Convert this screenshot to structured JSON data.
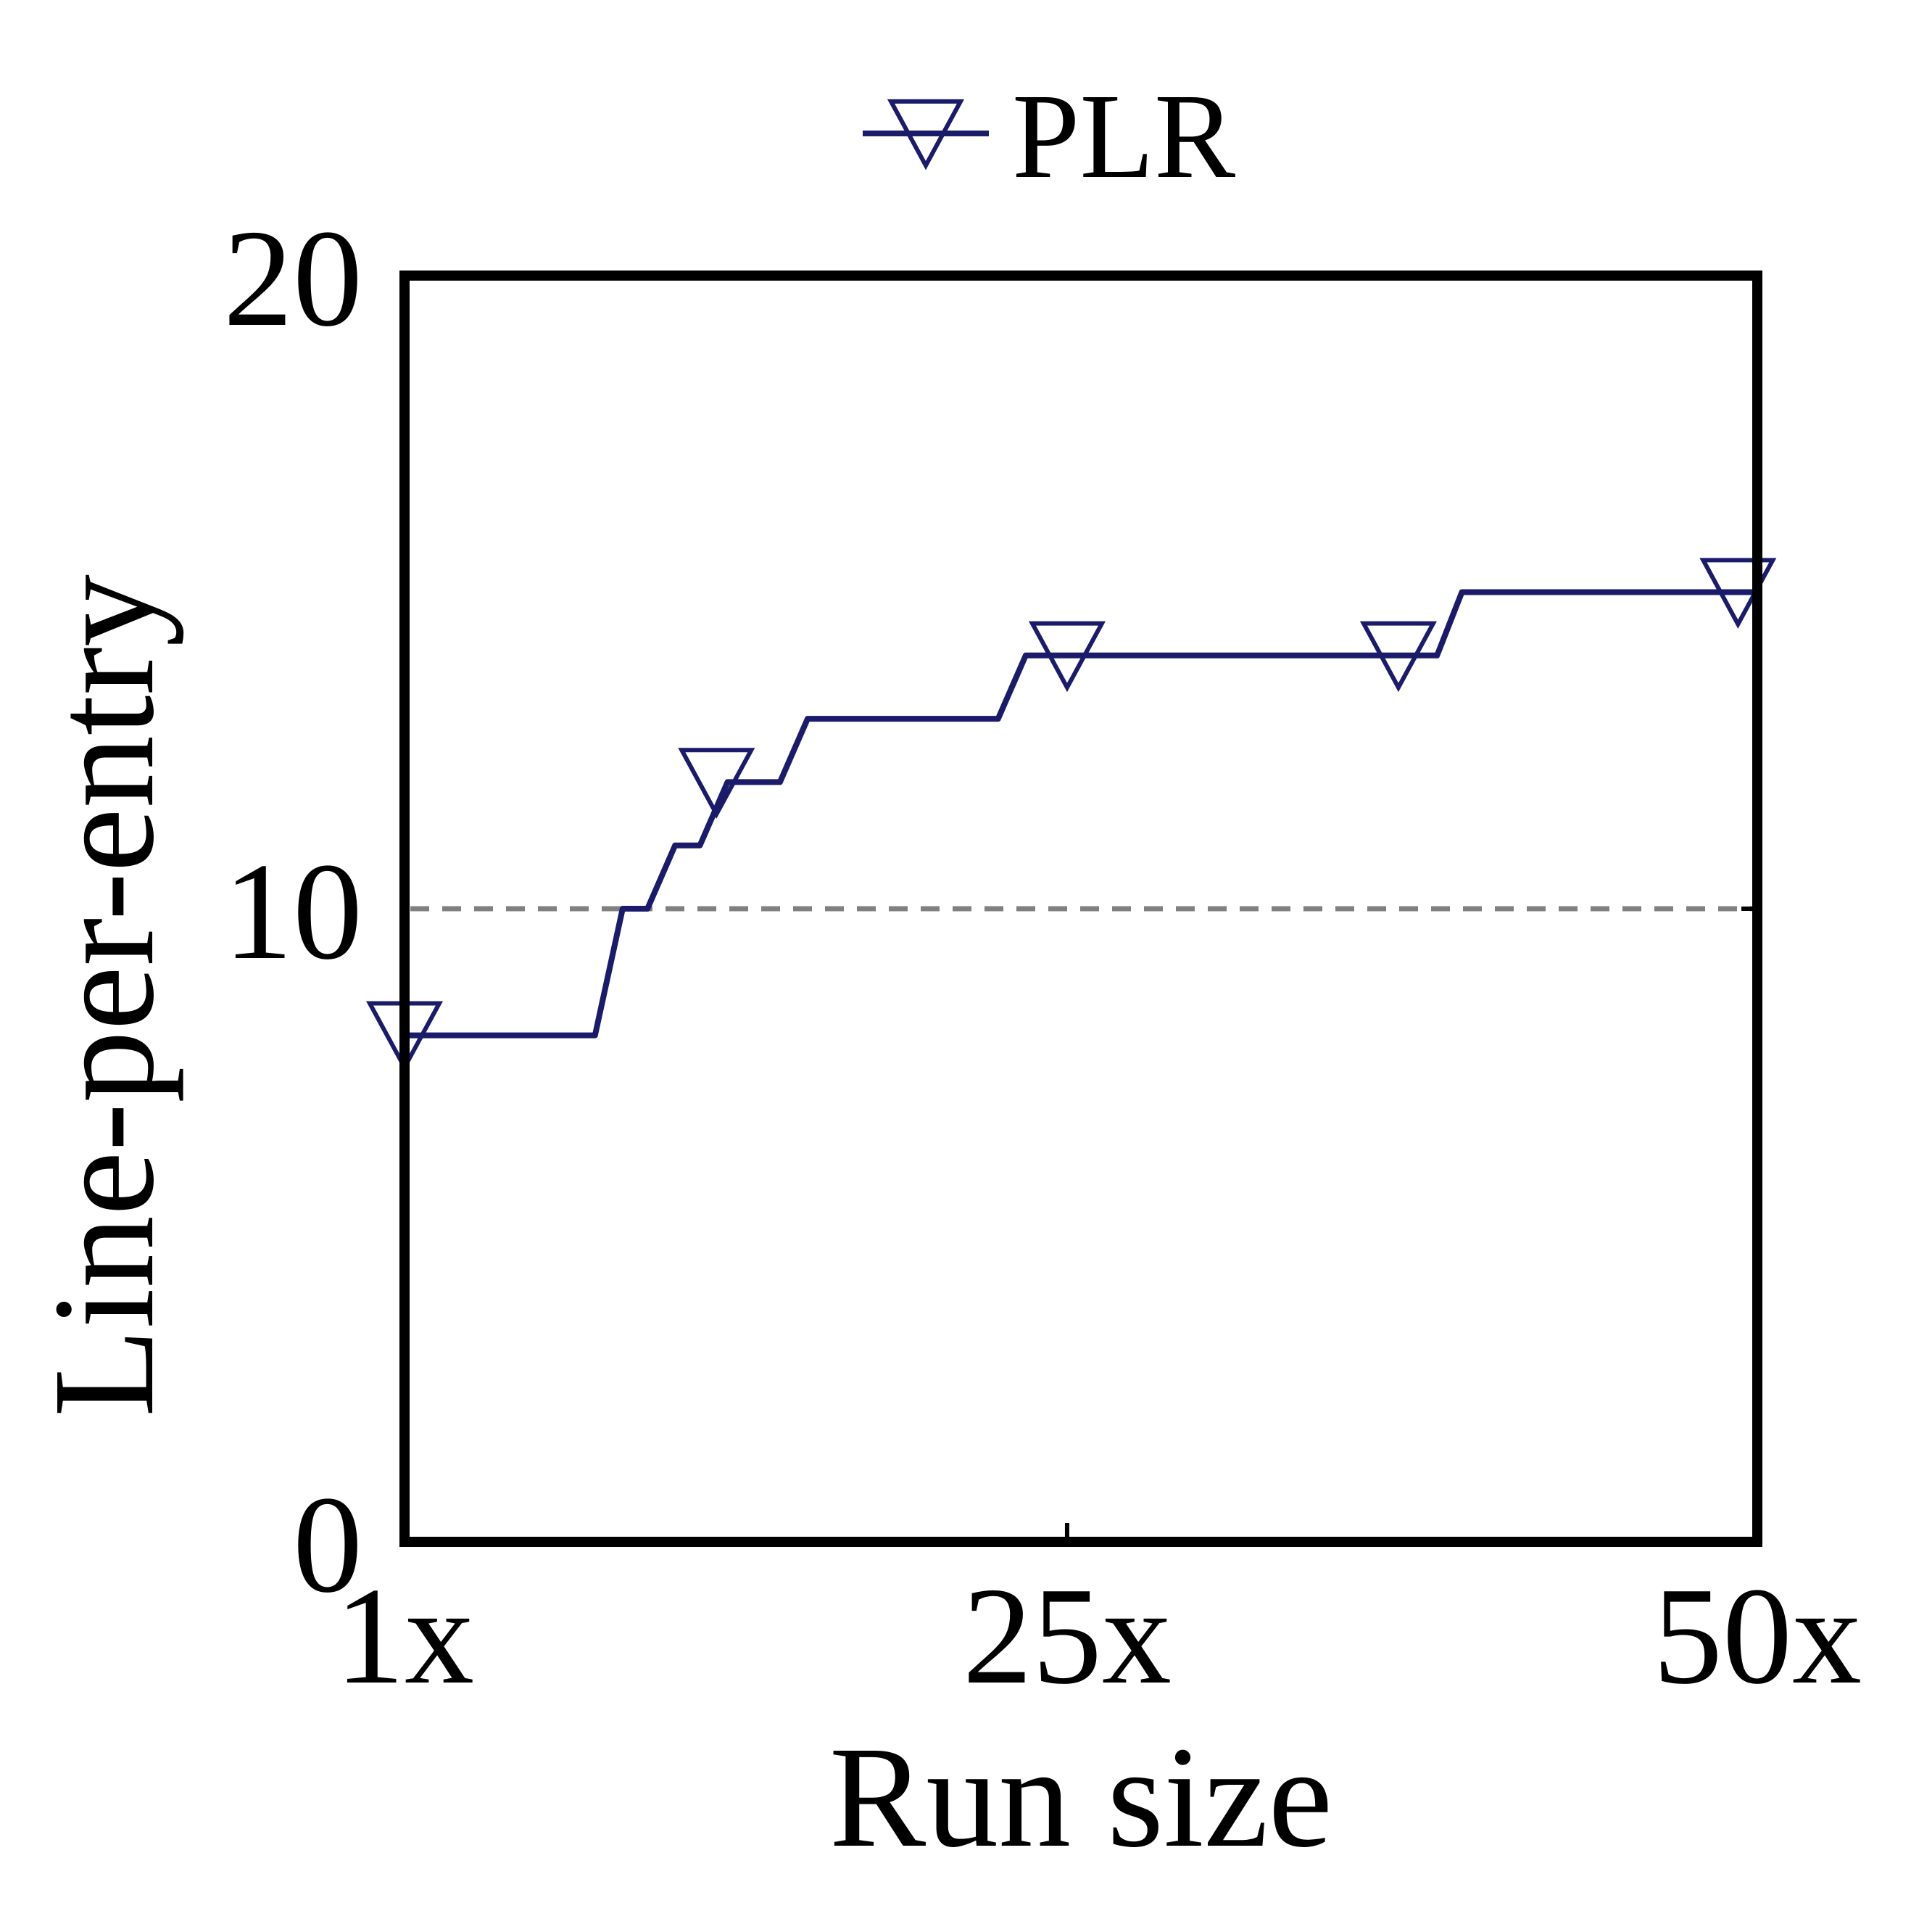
{
  "chart_data": {
    "type": "line",
    "xlabel": "Run size",
    "ylabel": "Line-per-entry",
    "xlim": [
      1,
      50
    ],
    "ylim": [
      0,
      20
    ],
    "x_ticks": [
      {
        "value": 1,
        "label": "1x"
      },
      {
        "value": 25,
        "label": "25x"
      },
      {
        "value": 50,
        "label": "50x"
      }
    ],
    "y_ticks": [
      {
        "value": 0,
        "label": "0"
      },
      {
        "value": 10,
        "label": "10"
      },
      {
        "value": 20,
        "label": "20"
      }
    ],
    "reference_line": {
      "y": 10,
      "style": "dashed",
      "color": "#808080"
    },
    "grid": false,
    "legend": {
      "placement": "top-center"
    },
    "series": [
      {
        "name": "PLR",
        "color": "#1b1b6b",
        "marker": "triangle-down-open",
        "points": [
          [
            1,
            8
          ],
          [
            7.9,
            8
          ],
          [
            8.9,
            10
          ],
          [
            9.8,
            10
          ],
          [
            10.8,
            11
          ],
          [
            11.7,
            11
          ],
          [
            12.7,
            12
          ],
          [
            14.6,
            12
          ],
          [
            15.6,
            13
          ],
          [
            22.5,
            13
          ],
          [
            23.5,
            14
          ],
          [
            38.4,
            14
          ],
          [
            39.3,
            15
          ],
          [
            50,
            15
          ]
        ],
        "marker_points": [
          [
            1,
            8
          ],
          [
            12.3,
            12
          ],
          [
            25,
            14
          ],
          [
            37,
            14
          ],
          [
            49.3,
            15
          ]
        ]
      }
    ]
  }
}
